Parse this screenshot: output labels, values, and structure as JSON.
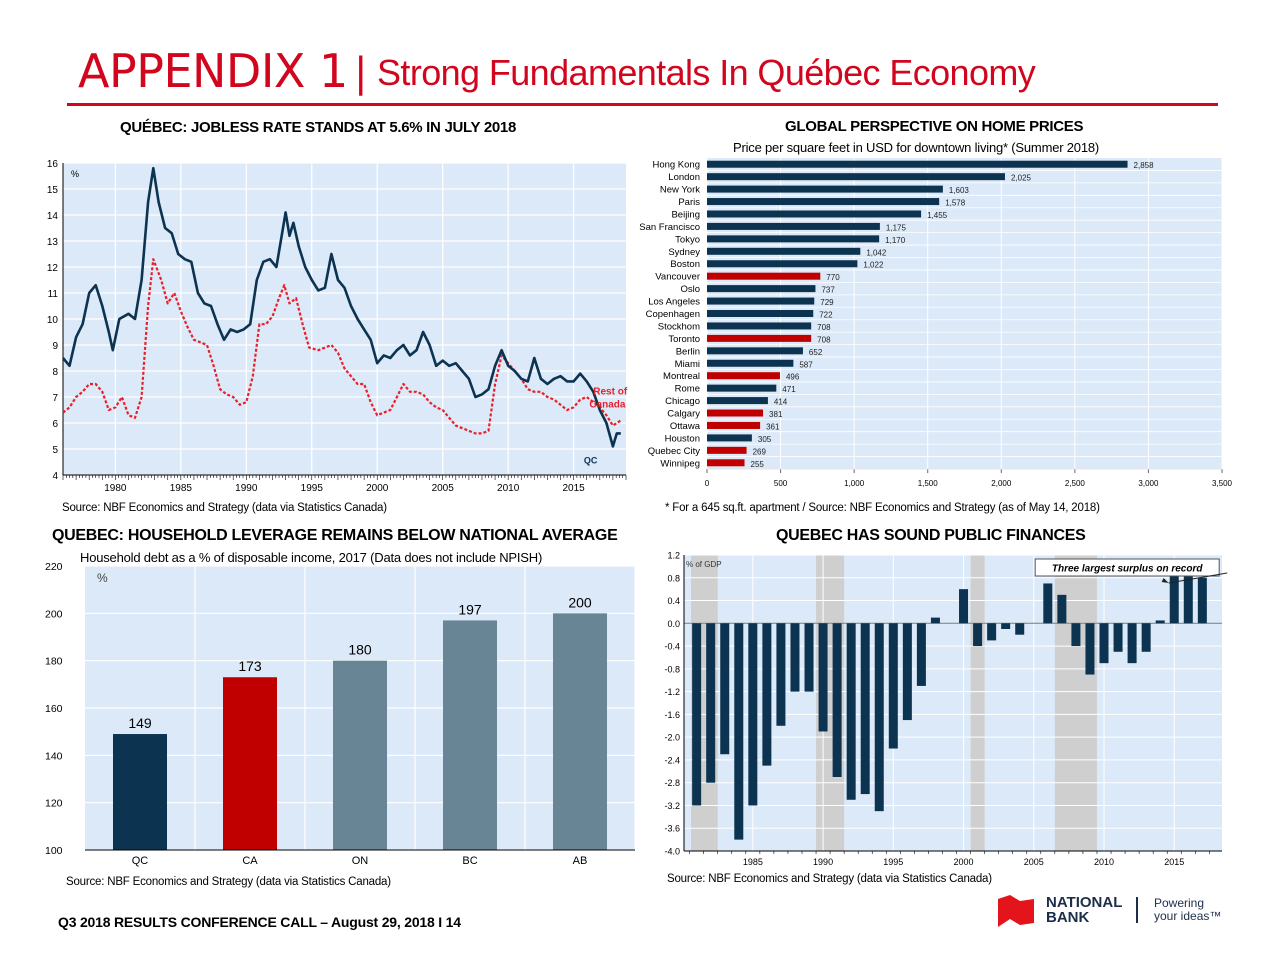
{
  "header": {
    "appendix": "APPENDIX 1",
    "separator": "|",
    "title": "Strong Fundamentals In Québec Economy",
    "accent_color": "#d2051e"
  },
  "footer": {
    "text": "Q3 2018 RESULTS CONFERENCE CALL – August 29, 2018 I  14",
    "logo_name": "NATIONAL BANK",
    "logo_line1": "NATIONAL",
    "logo_line2": "BANK",
    "tagline_line1": "Powering",
    "tagline_line2": "your ideas™"
  },
  "chart_data": [
    {
      "id": "jobless",
      "type": "line",
      "title": "QUÉBEC:  JOBLESS RATE STANDS AT 5.6% IN JULY 2018",
      "ylabel": "%",
      "source": "Source:  NBF Economics and Strategy (data via Statistics Canada)",
      "xlim": [
        1976,
        2019
      ],
      "ylim": [
        4,
        16
      ],
      "yticks": [
        4,
        5,
        6,
        7,
        8,
        9,
        10,
        11,
        12,
        13,
        14,
        15,
        16
      ],
      "xticks": [
        1980,
        1985,
        1990,
        1995,
        2000,
        2005,
        2010,
        2015
      ],
      "grid": true,
      "series": [
        {
          "name": "QC",
          "color": "#0c3350",
          "style": "solid",
          "x": [
            1976,
            1976.5,
            1977,
            1977.5,
            1978,
            1978.5,
            1979,
            1979.5,
            1979.8,
            1980.3,
            1981,
            1981.5,
            1982,
            1982.5,
            1982.9,
            1983.3,
            1983.8,
            1984.3,
            1984.8,
            1985.3,
            1985.8,
            1986.3,
            1986.8,
            1987.3,
            1987.8,
            1988.3,
            1988.8,
            1989.3,
            1989.8,
            1990.3,
            1990.8,
            1991.3,
            1991.8,
            1992.3,
            1992.8,
            1993.0,
            1993.3,
            1993.6,
            1994,
            1994.5,
            1995,
            1995.5,
            1996,
            1996.5,
            1997,
            1997.5,
            1998,
            1998.5,
            1999,
            1999.5,
            2000,
            2000.5,
            2001,
            2001.5,
            2002,
            2002.5,
            2003,
            2003.5,
            2004,
            2004.5,
            2005,
            2005.5,
            2006,
            2006.5,
            2007,
            2007.5,
            2008,
            2008.5,
            2009,
            2009.5,
            2010,
            2010.5,
            2011,
            2011.5,
            2012,
            2012.5,
            2013,
            2013.5,
            2014,
            2014.5,
            2015,
            2015.5,
            2016,
            2016.5,
            2017,
            2017.5,
            2018,
            2018.3,
            2018.6
          ],
          "y": [
            8.5,
            8.2,
            9.3,
            9.8,
            11.0,
            11.3,
            10.5,
            9.5,
            8.8,
            10.0,
            10.2,
            10.0,
            11.5,
            14.5,
            15.8,
            14.5,
            13.5,
            13.3,
            12.5,
            12.3,
            12.2,
            11.0,
            10.6,
            10.5,
            9.8,
            9.2,
            9.6,
            9.5,
            9.6,
            9.8,
            11.5,
            12.2,
            12.3,
            12.0,
            13.5,
            14.1,
            13.2,
            13.7,
            12.8,
            12.0,
            11.5,
            11.1,
            11.2,
            12.5,
            11.5,
            11.2,
            10.5,
            10.0,
            9.6,
            9.2,
            8.3,
            8.6,
            8.5,
            8.8,
            9.0,
            8.6,
            8.8,
            9.5,
            9.0,
            8.2,
            8.4,
            8.2,
            8.3,
            8.0,
            7.7,
            7.0,
            7.1,
            7.3,
            8.2,
            8.8,
            8.2,
            8.0,
            7.7,
            7.6,
            8.5,
            7.7,
            7.5,
            7.7,
            7.8,
            7.6,
            7.6,
            7.9,
            7.6,
            7.2,
            6.5,
            6.0,
            5.1,
            5.6,
            5.6
          ]
        },
        {
          "name": "Rest of Canada",
          "color": "#e8202a",
          "style": "dotted",
          "x": [
            1976,
            1976.5,
            1977,
            1977.5,
            1978,
            1978.5,
            1979,
            1979.5,
            1980,
            1980.5,
            1981,
            1981.5,
            1982,
            1982.5,
            1982.9,
            1983.5,
            1984,
            1984.5,
            1985,
            1985.5,
            1986,
            1986.5,
            1987,
            1987.5,
            1988,
            1988.5,
            1989,
            1989.5,
            1990,
            1990.5,
            1991,
            1991.5,
            1992,
            1992.5,
            1992.9,
            1993.3,
            1993.8,
            1994.3,
            1994.8,
            1995.5,
            1996,
            1996.5,
            1997,
            1997.5,
            1998,
            1998.5,
            1999,
            1999.5,
            2000,
            2000.5,
            2001,
            2001.5,
            2002,
            2002.5,
            2003,
            2003.5,
            2004,
            2004.5,
            2005,
            2005.5,
            2006,
            2006.5,
            2007,
            2007.5,
            2008,
            2008.5,
            2009,
            2009.5,
            2010,
            2010.5,
            2011,
            2011.5,
            2012,
            2012.5,
            2013,
            2013.5,
            2014,
            2014.5,
            2015,
            2015.5,
            2016,
            2016.5,
            2017,
            2017.5,
            2018,
            2018.6
          ],
          "y": [
            6.4,
            6.6,
            7.0,
            7.2,
            7.5,
            7.5,
            7.2,
            6.5,
            6.6,
            7.0,
            6.3,
            6.2,
            7.0,
            10.5,
            12.3,
            11.5,
            10.6,
            11.0,
            10.3,
            9.7,
            9.2,
            9.1,
            9.0,
            8.2,
            7.3,
            7.1,
            7.0,
            6.7,
            6.8,
            7.8,
            9.8,
            9.8,
            10.1,
            10.8,
            11.3,
            10.6,
            10.8,
            9.8,
            8.9,
            8.8,
            8.9,
            9.0,
            8.7,
            8.1,
            7.8,
            7.5,
            7.5,
            6.8,
            6.3,
            6.4,
            6.5,
            7.0,
            7.5,
            7.2,
            7.2,
            7.1,
            6.8,
            6.6,
            6.5,
            6.2,
            5.9,
            5.8,
            5.7,
            5.6,
            5.6,
            5.7,
            7.5,
            8.6,
            8.3,
            8.0,
            7.7,
            7.3,
            7.2,
            7.2,
            7.0,
            6.9,
            6.7,
            6.5,
            6.6,
            6.9,
            7.0,
            6.8,
            6.6,
            6.3,
            5.9,
            6.1
          ]
        }
      ],
      "labels": {
        "qc": "QC",
        "roc_line1": "Rest of",
        "roc_line2": "Canada"
      }
    },
    {
      "id": "home-prices",
      "type": "bar",
      "orientation": "horizontal",
      "title": "GLOBAL PERSPECTIVE ON HOME PRICES",
      "subtitle": "Price per square feet in USD for downtown living* (Summer 2018)",
      "footnote": "*  For a 645 sq.ft. apartment / Source:  NBF Economics and Strategy (as of May 14, 2018)",
      "xlim": [
        0,
        3500
      ],
      "xticks": [
        "0",
        "500",
        "1,000",
        "1,500",
        "2,000",
        "2,500",
        "3,000",
        "3,500"
      ],
      "grid": true,
      "colors": {
        "default": "#0c3350",
        "canada": "#c00000"
      },
      "categories": [
        "Hong Kong",
        "London",
        "New York",
        "Paris",
        "Beijing",
        "San Francisco",
        "Tokyo",
        "Sydney",
        "Boston",
        "Vancouver",
        "Oslo",
        "Los Angeles",
        "Copenhagen",
        "Stockhom",
        "Toronto",
        "Berlin",
        "Miami",
        "Montreal",
        "Rome",
        "Chicago",
        "Calgary",
        "Ottawa",
        "Houston",
        "Quebec City",
        "Winnipeg"
      ],
      "values": [
        2858,
        2025,
        1603,
        1578,
        1455,
        1175,
        1170,
        1042,
        1022,
        770,
        737,
        729,
        722,
        708,
        708,
        652,
        587,
        496,
        471,
        414,
        381,
        361,
        305,
        269,
        255
      ],
      "value_labels": [
        "2,858",
        "2,025",
        "1,603",
        "1,578",
        "1,455",
        "1,175",
        "1,170",
        "1,042",
        "1,022",
        "770",
        "737",
        "729",
        "722",
        "708",
        "708",
        "652",
        "587",
        "496",
        "471",
        "414",
        "381",
        "361",
        "305",
        "269",
        "255"
      ],
      "canadian": [
        false,
        false,
        false,
        false,
        false,
        false,
        false,
        false,
        false,
        true,
        false,
        false,
        false,
        false,
        true,
        false,
        false,
        true,
        false,
        false,
        true,
        true,
        false,
        true,
        true
      ]
    },
    {
      "id": "household-leverage",
      "type": "bar",
      "title": "QUEBEC: HOUSEHOLD LEVERAGE REMAINS BELOW NATIONAL AVERAGE",
      "subtitle": "Household debt as a % of disposable income, 2017 (Data does not include NPISH)",
      "ylabel": "%",
      "source": "Source:  NBF Economics and Strategy (data via Statistics Canada)",
      "ylim": [
        100,
        220
      ],
      "yticks": [
        100,
        120,
        140,
        160,
        180,
        200,
        220
      ],
      "grid": true,
      "categories": [
        "QC",
        "CA",
        "ON",
        "BC",
        "AB"
      ],
      "values": [
        149,
        173,
        180,
        197,
        200
      ],
      "colors": [
        "#0c3350",
        "#c00000",
        "#678595",
        "#678595",
        "#678595"
      ]
    },
    {
      "id": "public-finances",
      "type": "bar",
      "title": "QUEBEC HAS SOUND PUBLIC FINANCES",
      "ylabel": "% of GDP",
      "annotation": "Three largest surplus on record",
      "source": "Source:  NBF Economics and Strategy (data via Statistics Canada)",
      "ylim": [
        -4.0,
        1.2
      ],
      "yticks": [
        "-4.0",
        "-3.6",
        "-3.2",
        "-2.8",
        "-2.4",
        "-2.0",
        "-1.6",
        "-1.2",
        "-0.8",
        "-0.4",
        "0.0",
        "0.4",
        "0.8",
        "1.2"
      ],
      "xticks": [
        1985,
        1990,
        1995,
        2000,
        2005,
        2010,
        2015
      ],
      "xlim": [
        1980.1,
        2018.4
      ],
      "grid": true,
      "bar_color": "#0c3350",
      "shaded_periods": [
        [
          1980.6,
          1982.5
        ],
        [
          1989.5,
          1991.5
        ],
        [
          2000.5,
          2001.5
        ],
        [
          2006.5,
          2009.5
        ]
      ],
      "x": [
        1981,
        1982,
        1983,
        1984,
        1985,
        1986,
        1987,
        1988,
        1989,
        1990,
        1991,
        1992,
        1993,
        1994,
        1995,
        1996,
        1997,
        1998,
        1999,
        2000,
        2001,
        2002,
        2003,
        2004,
        2005,
        2006,
        2007,
        2008,
        2009,
        2010,
        2011,
        2012,
        2013,
        2014,
        2015,
        2016,
        2017
      ],
      "values": [
        -3.2,
        -2.8,
        -2.3,
        -3.8,
        -3.2,
        -2.5,
        -1.8,
        -1.2,
        -1.2,
        -1.9,
        -2.7,
        -3.1,
        -3.0,
        -3.3,
        -2.2,
        -1.7,
        -1.1,
        0.1,
        0,
        0.6,
        -0.4,
        -0.3,
        -0.1,
        -0.2,
        0,
        0.7,
        0.5,
        -0.4,
        -0.9,
        -0.7,
        -0.5,
        -0.7,
        -0.5,
        0.05,
        0.9,
        1.1,
        0.8
      ]
    }
  ]
}
